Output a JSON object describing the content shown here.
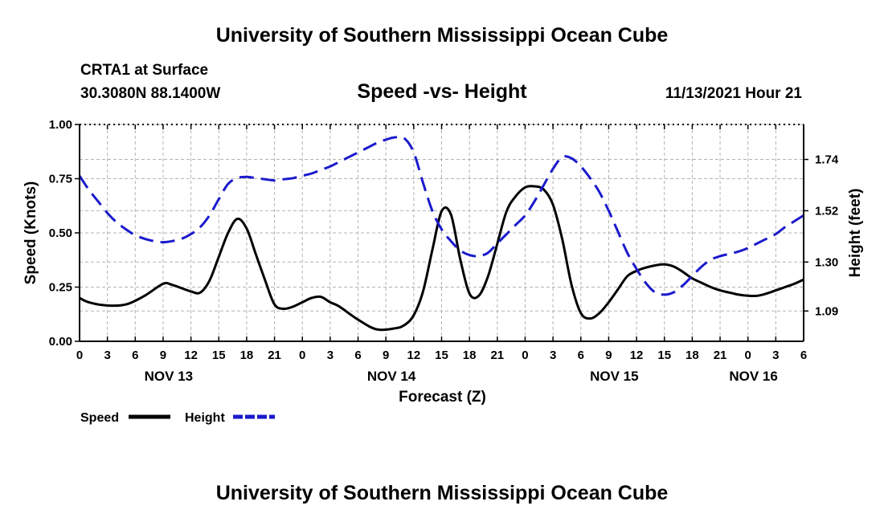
{
  "header": {
    "title": "University of Southern Mississippi Ocean Cube",
    "station": "CRTA1 at Surface",
    "coordinates": "30.3080N  88.1400W",
    "chart_title": "Speed -vs- Height",
    "datetime": "11/13/2021 Hour 21"
  },
  "footer": {
    "title": "University of Southern Mississippi Ocean Cube"
  },
  "colors": {
    "speed": "#000000",
    "height": "#1a1acc"
  },
  "chart_data": {
    "type": "line",
    "title": "Speed -vs- Height",
    "xlabel": "Forecast (Z)",
    "ylabel_left": "Speed (Knots)",
    "ylabel_right": "Height (feet)",
    "x_range": [
      0,
      78
    ],
    "x_ticks": [
      0,
      3,
      6,
      9,
      12,
      15,
      18,
      21,
      24,
      27,
      30,
      33,
      36,
      39,
      42,
      45,
      48,
      51,
      54,
      57,
      60,
      63,
      66,
      69,
      72,
      75,
      78
    ],
    "x_tick_labels": [
      "0",
      "3",
      "6",
      "9",
      "12",
      "15",
      "18",
      "21",
      "0",
      "3",
      "6",
      "9",
      "12",
      "15",
      "18",
      "21",
      "0",
      "3",
      "6",
      "9",
      "12",
      "15",
      "18",
      "21",
      "0",
      "3",
      "6"
    ],
    "date_labels": [
      {
        "label": "NOV 13",
        "x": 9.6
      },
      {
        "label": "NOV 14",
        "x": 33.6
      },
      {
        "label": "NOV 15",
        "x": 57.6
      },
      {
        "label": "NOV 16",
        "x": 72.6
      }
    ],
    "ylim_left": [
      0,
      1.0
    ],
    "y_ticks_left": [
      0.0,
      0.25,
      0.5,
      0.75,
      1.0
    ],
    "y_tick_labels_left": [
      "0.00",
      "0.25",
      "0.50",
      "0.75",
      "1.00"
    ],
    "ylim_right": [
      0.96,
      1.89
    ],
    "y_ticks_right": [
      1.09,
      1.3,
      1.52,
      1.74
    ],
    "y_tick_labels_right": [
      "1.09",
      "1.30",
      "1.52",
      "1.74"
    ],
    "grid": true,
    "legend": [
      {
        "name": "Speed",
        "style": "solid"
      },
      {
        "name": "Height",
        "style": "dashed"
      }
    ],
    "series": [
      {
        "name": "Speed",
        "axis": "left",
        "x": [
          0,
          1,
          3,
          5,
          7,
          9,
          10,
          12,
          13,
          14,
          15,
          16,
          17,
          18,
          19,
          20,
          21,
          22,
          23,
          24,
          25,
          26,
          27,
          28,
          30,
          32,
          34,
          35,
          36,
          37,
          38,
          39,
          40,
          41,
          42,
          43,
          44,
          45,
          46,
          47,
          48,
          49,
          50,
          51,
          52,
          53,
          54,
          55,
          56,
          57,
          58,
          59,
          60,
          61,
          62,
          63,
          64,
          65,
          66,
          67,
          68,
          69,
          70,
          71,
          72,
          73,
          74,
          75,
          76,
          77,
          78
        ],
        "values": [
          0.2,
          0.18,
          0.165,
          0.17,
          0.21,
          0.265,
          0.26,
          0.23,
          0.225,
          0.28,
          0.39,
          0.5,
          0.565,
          0.52,
          0.4,
          0.28,
          0.17,
          0.15,
          0.16,
          0.18,
          0.2,
          0.205,
          0.18,
          0.16,
          0.1,
          0.055,
          0.06,
          0.075,
          0.12,
          0.23,
          0.42,
          0.6,
          0.585,
          0.38,
          0.22,
          0.21,
          0.3,
          0.45,
          0.6,
          0.67,
          0.71,
          0.715,
          0.7,
          0.63,
          0.47,
          0.26,
          0.13,
          0.105,
          0.13,
          0.18,
          0.24,
          0.3,
          0.325,
          0.34,
          0.35,
          0.355,
          0.345,
          0.32,
          0.29,
          0.27,
          0.25,
          0.235,
          0.225,
          0.215,
          0.21,
          0.21,
          0.22,
          0.235,
          0.25,
          0.265,
          0.285
        ]
      },
      {
        "name": "Height",
        "axis": "right",
        "x": [
          0,
          1,
          2,
          3,
          4,
          5,
          6,
          7,
          8,
          9,
          10,
          11,
          12,
          13,
          14,
          15,
          16,
          17,
          18,
          19,
          20,
          21,
          22,
          23,
          24,
          25,
          26,
          27,
          28,
          29,
          30,
          31,
          32,
          33,
          34,
          35,
          36,
          37,
          38,
          39,
          40,
          41,
          42,
          43,
          44,
          45,
          46,
          47,
          48,
          49,
          50,
          51,
          52,
          53,
          54,
          55,
          56,
          57,
          58,
          59,
          60,
          61,
          62,
          63,
          64,
          65,
          66,
          67,
          68,
          69,
          70,
          71,
          72,
          73,
          74,
          75,
          76,
          77,
          78
        ],
        "values": [
          1.67,
          1.61,
          1.56,
          1.51,
          1.47,
          1.44,
          1.415,
          1.4,
          1.39,
          1.385,
          1.39,
          1.4,
          1.42,
          1.45,
          1.5,
          1.57,
          1.635,
          1.66,
          1.665,
          1.66,
          1.655,
          1.65,
          1.655,
          1.66,
          1.67,
          1.68,
          1.695,
          1.71,
          1.73,
          1.75,
          1.77,
          1.79,
          1.81,
          1.825,
          1.835,
          1.83,
          1.77,
          1.64,
          1.52,
          1.44,
          1.39,
          1.35,
          1.33,
          1.325,
          1.34,
          1.38,
          1.42,
          1.46,
          1.5,
          1.56,
          1.63,
          1.7,
          1.75,
          1.745,
          1.71,
          1.66,
          1.6,
          1.52,
          1.43,
          1.34,
          1.27,
          1.21,
          1.17,
          1.16,
          1.17,
          1.2,
          1.24,
          1.28,
          1.31,
          1.325,
          1.335,
          1.345,
          1.36,
          1.38,
          1.4,
          1.42,
          1.45,
          1.475,
          1.5
        ]
      }
    ]
  }
}
